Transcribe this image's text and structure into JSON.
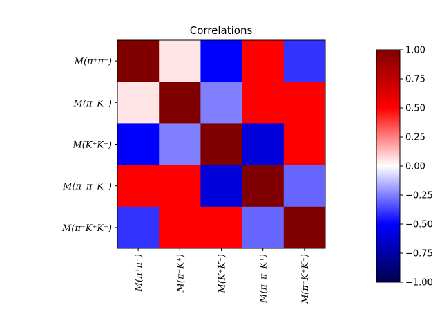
{
  "chart_data": {
    "type": "heatmap",
    "title": "Correlations",
    "row_labels": [
      "M(π⁺π⁻)",
      "M(π⁻K⁺)",
      "M(K⁺K⁻)",
      "M(π⁺π⁻K⁺)",
      "M(π⁻K⁺K⁻)"
    ],
    "col_labels": [
      "M(π⁺π⁻)",
      "M(π⁻K⁺)",
      "M(K⁺K⁻)",
      "M(π⁺π⁻K⁺)",
      "M(π⁻K⁺K⁻)"
    ],
    "values": [
      [
        1.0,
        0.05,
        -0.5,
        0.5,
        -0.4
      ],
      [
        0.05,
        1.0,
        -0.25,
        0.5,
        0.5
      ],
      [
        -0.5,
        -0.25,
        1.0,
        -0.6,
        0.5
      ],
      [
        0.5,
        0.5,
        -0.6,
        1.0,
        -0.3
      ],
      [
        -0.4,
        0.5,
        0.5,
        -0.3,
        1.0
      ]
    ],
    "colormap": "seismic",
    "vmin": -1.0,
    "vmax": 1.0,
    "colorbar_ticks": [
      "1.00",
      "0.75",
      "0.50",
      "0.25",
      "0.00",
      "−0.25",
      "−0.50",
      "−0.75",
      "−1.00"
    ],
    "colorbar_tick_values": [
      1.0,
      0.75,
      0.5,
      0.25,
      0.0,
      -0.25,
      -0.5,
      -0.75,
      -1.0
    ]
  }
}
